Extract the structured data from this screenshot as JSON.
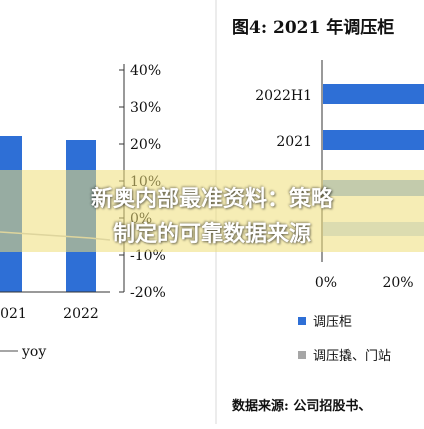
{
  "chart_data": [
    {
      "type": "bar",
      "title": "",
      "categories": [
        "2021",
        "2022"
      ],
      "series": [
        {
          "type": "bar",
          "values": [
            null,
            null
          ]
        },
        {
          "name": "yoy",
          "type": "line",
          "values": [
            null,
            null
          ]
        }
      ],
      "y2_ticks": [
        "40%",
        "30%",
        "20%",
        "10%",
        "0%",
        "-10%",
        "-20%"
      ],
      "y2lim": [
        -20,
        40
      ],
      "legend": "bottom",
      "grid": false,
      "colors": {
        "bar": "#2e6fd6",
        "line": "#a6a6a6"
      }
    },
    {
      "type": "bar",
      "orientation": "horizontal",
      "title": "图4:  2021 年调压柜",
      "categories": [
        "2022H1",
        "2021"
      ],
      "series": [
        {
          "name": "调压柜",
          "values": [
            null,
            null
          ]
        }
      ],
      "x_ticks": [
        "0%",
        "20%"
      ],
      "legend_items": [
        "调压柜",
        "调压撬、门站"
      ],
      "legend": "bottom",
      "grid": false,
      "colors": {
        "bar": "#2e6fd6",
        "secondary": "#a6a6a6"
      }
    }
  ],
  "source_note": "数据来源: 公司招股书、",
  "overlay_caption": [
    "新奥内部最准资料：策略",
    "制定的可靠数据来源"
  ]
}
